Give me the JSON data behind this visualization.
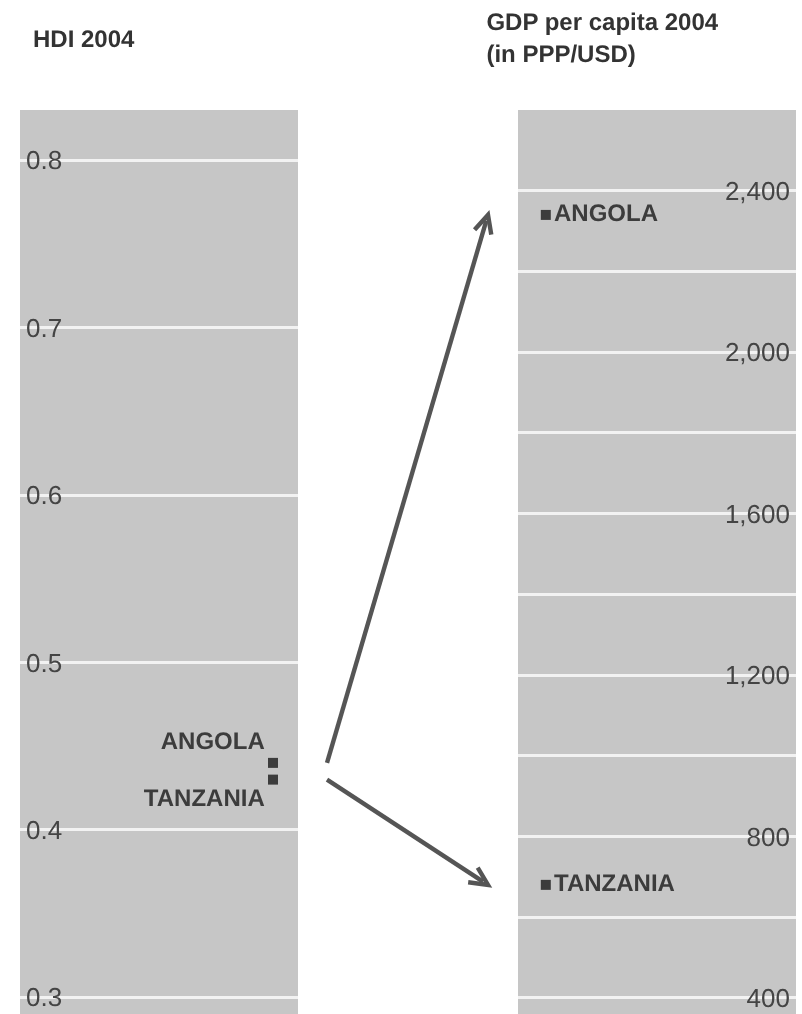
{
  "chart_data": [
    {
      "type": "scatter",
      "title": "HDI 2004",
      "categories": [
        null
      ],
      "series": [
        {
          "name": "ANGOLA",
          "color": "#3c3c3c",
          "values": [
            0.44
          ]
        },
        {
          "name": "TANZANIA",
          "color": "#3c3c3c",
          "values": [
            0.43
          ]
        }
      ],
      "ylim": [
        0.29,
        0.83
      ],
      "yticks": [
        0.3,
        0.4,
        0.5,
        0.6,
        0.7,
        0.8
      ],
      "grid": "y",
      "marker": "square",
      "tick_labels": "y"
    },
    {
      "type": "scatter",
      "title": "GDP per capita 2004\n(in PPP/USD)",
      "categories": [
        null
      ],
      "series": [
        {
          "name": "ANGOLA",
          "color": "#3c3c3c",
          "values": [
            2340
          ]
        },
        {
          "name": "TANZANIA",
          "color": "#3c3c3c",
          "values": [
            680
          ]
        }
      ],
      "ylim": [
        360,
        2600
      ],
      "yticks": [
        400,
        {
          "value": 600,
          "label": null
        },
        800,
        {
          "value": 1000,
          "label": null
        },
        {
          "value": 1200,
          "label": "1,200"
        },
        {
          "value": 1400,
          "label": null
        },
        {
          "value": 1600,
          "label": "1,600"
        },
        {
          "value": 1800,
          "label": null
        },
        {
          "value": 2000,
          "label": "2,000"
        },
        {
          "value": 2200,
          "label": null
        },
        {
          "value": 2400,
          "label": "2,400"
        }
      ],
      "grid": "y",
      "marker": "square",
      "tick_labels": "y"
    }
  ]
}
